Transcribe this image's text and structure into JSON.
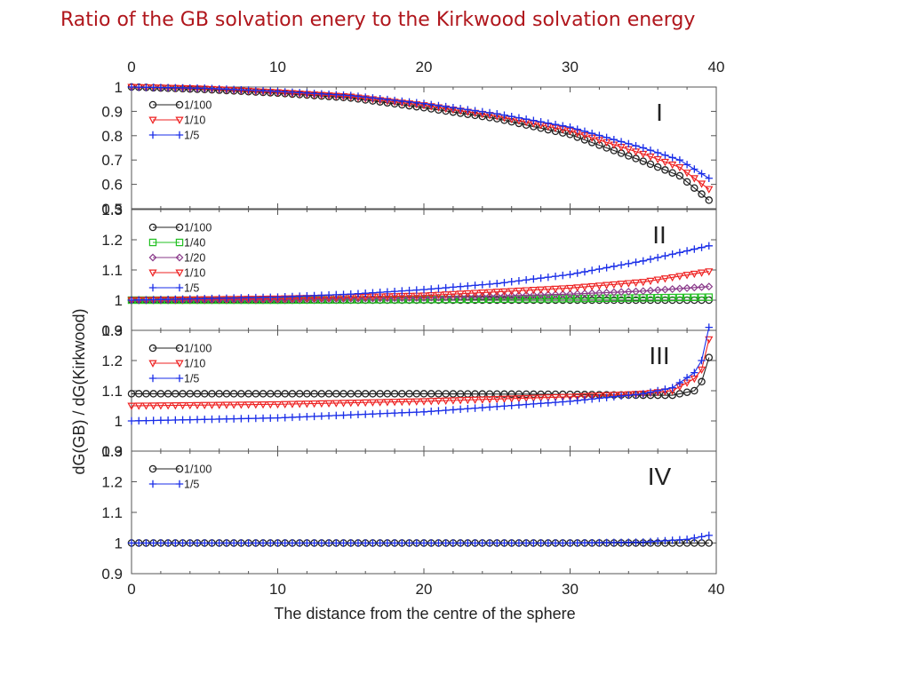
{
  "slide": {
    "title": "Ratio of the GB solvation enery to the Kirkwood solvation energy"
  },
  "chart_data": {
    "type": "line",
    "xlabel": "The distance from the centre of the sphere",
    "ylabel": "dG(GB) / dG(Kirkwood)",
    "xlim": [
      0,
      40
    ],
    "xticks": [
      "0",
      "10",
      "20",
      "30",
      "40"
    ],
    "colors": {
      "1/100": "#222222",
      "1/40": "#22c022",
      "1/20": "#8a3a8a",
      "1/10": "#ee2222",
      "1/5": "#1a2ee8"
    },
    "markers": {
      "1/100": "circle",
      "1/40": "square",
      "1/20": "diamond",
      "1/10": "triangle-down",
      "1/5": "plus"
    },
    "panels": [
      {
        "label": "I",
        "ylim": [
          0.5,
          1.0
        ],
        "yticks": [
          "0.5",
          "0.6",
          "0.7",
          "0.8",
          "0.9",
          "1"
        ],
        "legend_position": "top-left",
        "series": [
          {
            "name": "1/100",
            "points": [
              [
                0,
                1.0
              ],
              [
                5,
                0.99
              ],
              [
                10,
                0.975
              ],
              [
                15,
                0.955
              ],
              [
                20,
                0.915
              ],
              [
                25,
                0.87
              ],
              [
                30,
                0.805
              ],
              [
                35,
                0.695
              ],
              [
                37.5,
                0.635
              ],
              [
                39.5,
                0.535
              ]
            ]
          },
          {
            "name": "1/10",
            "points": [
              [
                0,
                1.0
              ],
              [
                5,
                0.993
              ],
              [
                10,
                0.978
              ],
              [
                15,
                0.96
              ],
              [
                20,
                0.925
              ],
              [
                25,
                0.88
              ],
              [
                30,
                0.82
              ],
              [
                35,
                0.725
              ],
              [
                37.5,
                0.67
              ],
              [
                39.5,
                0.58
              ]
            ]
          },
          {
            "name": "1/5",
            "points": [
              [
                0,
                1.0
              ],
              [
                5,
                0.995
              ],
              [
                10,
                0.982
              ],
              [
                15,
                0.965
              ],
              [
                20,
                0.932
              ],
              [
                25,
                0.89
              ],
              [
                30,
                0.835
              ],
              [
                35,
                0.75
              ],
              [
                37.5,
                0.7
              ],
              [
                39.5,
                0.625
              ]
            ]
          }
        ]
      },
      {
        "label": "II",
        "ylim": [
          0.9,
          1.3
        ],
        "yticks": [
          "0.9",
          "1",
          "1.1",
          "1.2",
          "1.3"
        ],
        "legend_position": "top-left",
        "series": [
          {
            "name": "1/100",
            "points": [
              [
                0,
                1.0
              ],
              [
                10,
                1.0
              ],
              [
                20,
                1.0
              ],
              [
                30,
                1.0
              ],
              [
                39.5,
                1.0
              ]
            ]
          },
          {
            "name": "1/40",
            "points": [
              [
                0,
                1.0
              ],
              [
                10,
                1.0
              ],
              [
                20,
                1.002
              ],
              [
                30,
                1.005
              ],
              [
                39.5,
                1.01
              ]
            ]
          },
          {
            "name": "1/20",
            "points": [
              [
                0,
                1.0
              ],
              [
                10,
                1.002
              ],
              [
                20,
                1.008
              ],
              [
                30,
                1.02
              ],
              [
                35,
                1.03
              ],
              [
                39.5,
                1.045
              ]
            ]
          },
          {
            "name": "1/10",
            "points": [
              [
                0,
                1.0
              ],
              [
                10,
                1.005
              ],
              [
                20,
                1.015
              ],
              [
                30,
                1.04
              ],
              [
                35,
                1.06
              ],
              [
                39.5,
                1.095
              ]
            ]
          },
          {
            "name": "1/5",
            "points": [
              [
                0,
                1.0
              ],
              [
                10,
                1.01
              ],
              [
                15,
                1.02
              ],
              [
                20,
                1.035
              ],
              [
                25,
                1.055
              ],
              [
                30,
                1.085
              ],
              [
                35,
                1.13
              ],
              [
                39.5,
                1.18
              ]
            ]
          }
        ]
      },
      {
        "label": "III",
        "ylim": [
          0.9,
          1.3
        ],
        "yticks": [
          "0.9",
          "1",
          "1.1",
          "1.2",
          "1.3"
        ],
        "legend_position": "top-left",
        "series": [
          {
            "name": "1/100",
            "points": [
              [
                0,
                1.09
              ],
              [
                10,
                1.09
              ],
              [
                20,
                1.09
              ],
              [
                30,
                1.088
              ],
              [
                35,
                1.085
              ],
              [
                37,
                1.085
              ],
              [
                38.5,
                1.1
              ],
              [
                39,
                1.13
              ],
              [
                39.5,
                1.21
              ]
            ]
          },
          {
            "name": "1/10",
            "points": [
              [
                0,
                1.05
              ],
              [
                10,
                1.055
              ],
              [
                20,
                1.065
              ],
              [
                30,
                1.08
              ],
              [
                35,
                1.09
              ],
              [
                37,
                1.1
              ],
              [
                38.5,
                1.14
              ],
              [
                39,
                1.17
              ],
              [
                39.5,
                1.27
              ]
            ]
          },
          {
            "name": "1/5",
            "points": [
              [
                0,
                1.0
              ],
              [
                10,
                1.01
              ],
              [
                20,
                1.03
              ],
              [
                30,
                1.065
              ],
              [
                35,
                1.09
              ],
              [
                37,
                1.11
              ],
              [
                38.5,
                1.16
              ],
              [
                39,
                1.2
              ],
              [
                39.5,
                1.31
              ]
            ]
          }
        ]
      },
      {
        "label": "IV",
        "ylim": [
          0.9,
          1.3
        ],
        "yticks": [
          "0.9",
          "1",
          "1.1",
          "1.2",
          "1.3"
        ],
        "legend_position": "top-left",
        "series": [
          {
            "name": "1/100",
            "points": [
              [
                0,
                1.0
              ],
              [
                20,
                1.0
              ],
              [
                39.5,
                1.0
              ]
            ]
          },
          {
            "name": "1/5",
            "points": [
              [
                0,
                1.0
              ],
              [
                30,
                1.0
              ],
              [
                35,
                1.003
              ],
              [
                38,
                1.012
              ],
              [
                39.5,
                1.025
              ]
            ]
          }
        ]
      }
    ]
  }
}
